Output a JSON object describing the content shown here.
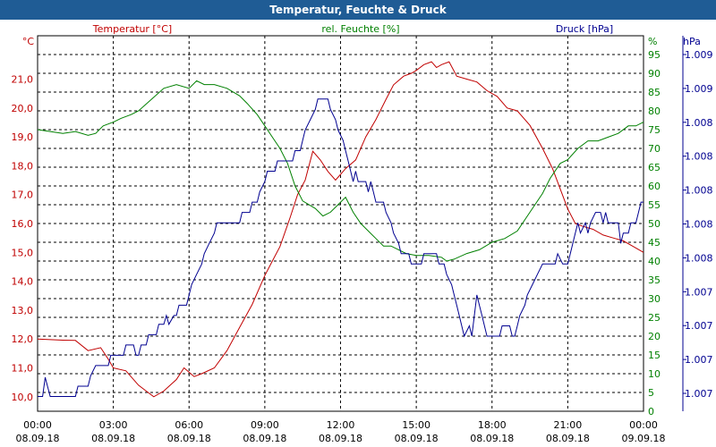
{
  "window": {
    "title": "Temperatur, Feuchte & Druck"
  },
  "colors": {
    "title_bar": "#1f5c95",
    "temperature": "#c00000",
    "humidity": "#008000",
    "pressure": "#000090",
    "grid": "#000000"
  },
  "chart_data": {
    "type": "line",
    "title": "Temperatur, Feuchte & Druck",
    "grid": true,
    "x_ticks": [
      {
        "time": "00:00",
        "date": "08.09.18"
      },
      {
        "time": "03:00",
        "date": "08.09.18"
      },
      {
        "time": "06:00",
        "date": "08.09.18"
      },
      {
        "time": "09:00",
        "date": "08.09.18"
      },
      {
        "time": "12:00",
        "date": "08.09.18"
      },
      {
        "time": "15:00",
        "date": "08.09.18"
      },
      {
        "time": "18:00",
        "date": "08.09.18"
      },
      {
        "time": "21:00",
        "date": "08.09.18"
      },
      {
        "time": "00:00",
        "date": "09.09.18"
      }
    ],
    "xlim": [
      0,
      24
    ],
    "axes": {
      "temperature": {
        "label": "Temperatur [°C]",
        "unit": "°C",
        "ylim": [
          9.5,
          22.5
        ],
        "ticks": [
          "10,0",
          "11,0",
          "12,0",
          "13,0",
          "14,0",
          "15,0",
          "16,0",
          "17,0",
          "18,0",
          "19,0",
          "20,0",
          "21,0"
        ]
      },
      "humidity": {
        "label": "rel. Feuchte [%]",
        "unit": "%",
        "ylim": [
          0,
          100
        ],
        "ticks": [
          "0",
          "5",
          "10",
          "15",
          "20",
          "25",
          "30",
          "35",
          "40",
          "45",
          "50",
          "55",
          "60",
          "65",
          "70",
          "75",
          "80",
          "85",
          "90",
          "95"
        ]
      },
      "pressure": {
        "label": "Druck [hPa]",
        "unit": "hPa",
        "ylim": [
          1006.55,
          1009.1
        ],
        "ticks": [
          "1.007",
          "1.007",
          "1.007",
          "1.007",
          "1.008",
          "1.008",
          "1.008",
          "1.008",
          "1.008",
          "1.009",
          "1.009"
        ]
      }
    },
    "series": [
      {
        "name": "Temperatur [°C]",
        "axis": "temperature",
        "points": [
          [
            0,
            12.0
          ],
          [
            0.5,
            11.98
          ],
          [
            1,
            11.96
          ],
          [
            1.5,
            11.95
          ],
          [
            2,
            11.6
          ],
          [
            2.5,
            11.7
          ],
          [
            2.8,
            11.3
          ],
          [
            3,
            11.0
          ],
          [
            3.5,
            10.9
          ],
          [
            4,
            10.4
          ],
          [
            4.3,
            10.2
          ],
          [
            4.6,
            10.0
          ],
          [
            5,
            10.2
          ],
          [
            5.5,
            10.6
          ],
          [
            5.8,
            11.0
          ],
          [
            6.2,
            10.7
          ],
          [
            6.5,
            10.8
          ],
          [
            7,
            11.0
          ],
          [
            7.5,
            11.6
          ],
          [
            8,
            12.4
          ],
          [
            8.5,
            13.2
          ],
          [
            9,
            14.2
          ],
          [
            9.3,
            14.7
          ],
          [
            9.6,
            15.2
          ],
          [
            10,
            16.2
          ],
          [
            10.3,
            17.0
          ],
          [
            10.6,
            17.5
          ],
          [
            10.9,
            18.5
          ],
          [
            11.2,
            18.2
          ],
          [
            11.5,
            17.8
          ],
          [
            11.8,
            17.5
          ],
          [
            12.2,
            17.9
          ],
          [
            12.6,
            18.2
          ],
          [
            13,
            19.0
          ],
          [
            13.4,
            19.6
          ],
          [
            13.8,
            20.3
          ],
          [
            14.1,
            20.8
          ],
          [
            14.5,
            21.1
          ],
          [
            14.8,
            21.2
          ],
          [
            15,
            21.3
          ],
          [
            15.3,
            21.5
          ],
          [
            15.6,
            21.6
          ],
          [
            15.8,
            21.4
          ],
          [
            16,
            21.5
          ],
          [
            16.3,
            21.6
          ],
          [
            16.6,
            21.1
          ],
          [
            17,
            21.0
          ],
          [
            17.4,
            20.9
          ],
          [
            17.8,
            20.6
          ],
          [
            18.2,
            20.4
          ],
          [
            18.6,
            20.0
          ],
          [
            19,
            19.9
          ],
          [
            19.5,
            19.4
          ],
          [
            20,
            18.6
          ],
          [
            20.4,
            17.9
          ],
          [
            20.7,
            17.2
          ],
          [
            21,
            16.5
          ],
          [
            21.3,
            16.0
          ],
          [
            21.6,
            15.9
          ],
          [
            22,
            15.8
          ],
          [
            22.4,
            15.6
          ],
          [
            22.8,
            15.5
          ],
          [
            23.2,
            15.4
          ],
          [
            23.6,
            15.2
          ],
          [
            24,
            15.0
          ]
        ]
      },
      {
        "name": "rel. Feuchte [%]",
        "axis": "humidity",
        "points": [
          [
            0,
            75
          ],
          [
            0.5,
            74.5
          ],
          [
            1,
            74
          ],
          [
            1.5,
            74.5
          ],
          [
            2,
            73.5
          ],
          [
            2.3,
            74
          ],
          [
            2.6,
            76
          ],
          [
            3,
            77
          ],
          [
            3.3,
            78
          ],
          [
            3.7,
            79
          ],
          [
            4,
            80
          ],
          [
            4.5,
            83
          ],
          [
            5,
            86
          ],
          [
            5.5,
            87
          ],
          [
            6,
            86
          ],
          [
            6.3,
            88
          ],
          [
            6.6,
            87
          ],
          [
            7,
            87
          ],
          [
            7.5,
            86
          ],
          [
            8,
            84
          ],
          [
            8.3,
            82
          ],
          [
            8.7,
            79
          ],
          [
            9,
            76
          ],
          [
            9.3,
            73
          ],
          [
            9.6,
            70
          ],
          [
            9.9,
            66
          ],
          [
            10.2,
            60
          ],
          [
            10.5,
            56
          ],
          [
            11,
            54
          ],
          [
            11.3,
            52
          ],
          [
            11.6,
            53
          ],
          [
            11.9,
            55
          ],
          [
            12.2,
            57
          ],
          [
            12.5,
            53
          ],
          [
            12.8,
            50
          ],
          [
            13.1,
            48
          ],
          [
            13.4,
            46
          ],
          [
            13.7,
            44
          ],
          [
            14,
            44
          ],
          [
            14.3,
            43
          ],
          [
            14.6,
            42
          ],
          [
            15,
            41.5
          ],
          [
            15.5,
            41.5
          ],
          [
            16,
            41
          ],
          [
            16.2,
            40
          ],
          [
            16.5,
            40.5
          ],
          [
            17,
            42
          ],
          [
            17.5,
            43
          ],
          [
            18,
            45
          ],
          [
            18.5,
            46
          ],
          [
            19,
            48
          ],
          [
            19.5,
            53
          ],
          [
            20,
            58
          ],
          [
            20.3,
            62
          ],
          [
            20.7,
            66
          ],
          [
            21,
            67
          ],
          [
            21.4,
            70
          ],
          [
            21.8,
            72
          ],
          [
            22.2,
            72
          ],
          [
            22.6,
            73
          ],
          [
            23,
            74
          ],
          [
            23.4,
            76
          ],
          [
            23.7,
            76
          ],
          [
            24,
            77
          ]
        ]
      },
      {
        "name": "Druck [hPa]",
        "axis": "pressure",
        "points": [
          [
            0,
            1006.65
          ],
          [
            0.2,
            1006.65
          ],
          [
            0.3,
            1006.78
          ],
          [
            0.5,
            1006.65
          ],
          [
            1.5,
            1006.65
          ],
          [
            1.6,
            1006.72
          ],
          [
            2,
            1006.72
          ],
          [
            2.1,
            1006.79
          ],
          [
            2.3,
            1006.86
          ],
          [
            2.8,
            1006.86
          ],
          [
            2.9,
            1006.93
          ],
          [
            3.4,
            1006.93
          ],
          [
            3.5,
            1007.0
          ],
          [
            3.8,
            1007.0
          ],
          [
            3.9,
            1006.93
          ],
          [
            4.0,
            1006.93
          ],
          [
            4.1,
            1007.0
          ],
          [
            4.3,
            1007.0
          ],
          [
            4.4,
            1007.07
          ],
          [
            4.7,
            1007.07
          ],
          [
            4.8,
            1007.14
          ],
          [
            5.0,
            1007.14
          ],
          [
            5.1,
            1007.2
          ],
          [
            5.2,
            1007.14
          ],
          [
            5.4,
            1007.2
          ],
          [
            5.5,
            1007.2
          ],
          [
            5.6,
            1007.27
          ],
          [
            5.9,
            1007.27
          ],
          [
            6.0,
            1007.34
          ],
          [
            6.1,
            1007.41
          ],
          [
            6.3,
            1007.48
          ],
          [
            6.5,
            1007.55
          ],
          [
            6.6,
            1007.62
          ],
          [
            6.8,
            1007.69
          ],
          [
            7.0,
            1007.76
          ],
          [
            7.1,
            1007.83
          ],
          [
            8.0,
            1007.83
          ],
          [
            8.1,
            1007.9
          ],
          [
            8.4,
            1007.9
          ],
          [
            8.5,
            1007.97
          ],
          [
            8.7,
            1007.97
          ],
          [
            8.8,
            1008.04
          ],
          [
            9.0,
            1008.11
          ],
          [
            9.1,
            1008.18
          ],
          [
            9.4,
            1008.18
          ],
          [
            9.5,
            1008.25
          ],
          [
            10.1,
            1008.25
          ],
          [
            10.2,
            1008.32
          ],
          [
            10.4,
            1008.32
          ],
          [
            10.5,
            1008.39
          ],
          [
            10.6,
            1008.46
          ],
          [
            10.8,
            1008.53
          ],
          [
            11.0,
            1008.6
          ],
          [
            11.1,
            1008.67
          ],
          [
            11.5,
            1008.67
          ],
          [
            11.6,
            1008.6
          ],
          [
            11.8,
            1008.53
          ],
          [
            11.9,
            1008.46
          ],
          [
            12.1,
            1008.39
          ],
          [
            12.2,
            1008.32
          ],
          [
            12.3,
            1008.25
          ],
          [
            12.4,
            1008.18
          ],
          [
            12.5,
            1008.11
          ],
          [
            12.6,
            1008.18
          ],
          [
            12.7,
            1008.11
          ],
          [
            13.0,
            1008.11
          ],
          [
            13.1,
            1008.04
          ],
          [
            13.2,
            1008.11
          ],
          [
            13.3,
            1008.04
          ],
          [
            13.4,
            1007.97
          ],
          [
            13.7,
            1007.97
          ],
          [
            13.8,
            1007.9
          ],
          [
            14.0,
            1007.83
          ],
          [
            14.1,
            1007.76
          ],
          [
            14.3,
            1007.69
          ],
          [
            14.4,
            1007.62
          ],
          [
            14.7,
            1007.62
          ],
          [
            14.8,
            1007.55
          ],
          [
            15.2,
            1007.55
          ],
          [
            15.3,
            1007.62
          ],
          [
            15.8,
            1007.62
          ],
          [
            15.9,
            1007.55
          ],
          [
            16.1,
            1007.55
          ],
          [
            16.2,
            1007.48
          ],
          [
            16.4,
            1007.41
          ],
          [
            16.5,
            1007.34
          ],
          [
            16.6,
            1007.27
          ],
          [
            16.7,
            1007.2
          ],
          [
            16.8,
            1007.13
          ],
          [
            16.9,
            1007.06
          ],
          [
            17.1,
            1007.13
          ],
          [
            17.2,
            1007.06
          ],
          [
            17.3,
            1007.2
          ],
          [
            17.4,
            1007.34
          ],
          [
            17.5,
            1007.27
          ],
          [
            17.6,
            1007.2
          ],
          [
            17.8,
            1007.06
          ],
          [
            18.3,
            1007.06
          ],
          [
            18.4,
            1007.13
          ],
          [
            18.7,
            1007.13
          ],
          [
            18.8,
            1007.06
          ],
          [
            18.9,
            1007.06
          ],
          [
            19.0,
            1007.13
          ],
          [
            19.1,
            1007.2
          ],
          [
            19.3,
            1007.27
          ],
          [
            19.4,
            1007.34
          ],
          [
            19.6,
            1007.41
          ],
          [
            19.8,
            1007.48
          ],
          [
            20.0,
            1007.55
          ],
          [
            20.5,
            1007.55
          ],
          [
            20.6,
            1007.62
          ],
          [
            20.8,
            1007.55
          ],
          [
            21.0,
            1007.55
          ],
          [
            21.1,
            1007.62
          ],
          [
            21.2,
            1007.69
          ],
          [
            21.3,
            1007.76
          ],
          [
            21.4,
            1007.83
          ],
          [
            21.5,
            1007.76
          ],
          [
            21.7,
            1007.83
          ],
          [
            21.8,
            1007.76
          ],
          [
            21.9,
            1007.83
          ],
          [
            22.1,
            1007.9
          ],
          [
            22.3,
            1007.9
          ],
          [
            22.4,
            1007.83
          ],
          [
            22.5,
            1007.9
          ],
          [
            22.6,
            1007.83
          ],
          [
            23.0,
            1007.83
          ],
          [
            23.1,
            1007.69
          ],
          [
            23.2,
            1007.76
          ],
          [
            23.4,
            1007.76
          ],
          [
            23.5,
            1007.83
          ],
          [
            23.7,
            1007.83
          ],
          [
            23.8,
            1007.9
          ],
          [
            23.9,
            1007.97
          ],
          [
            24.0,
            1007.97
          ]
        ]
      }
    ]
  }
}
